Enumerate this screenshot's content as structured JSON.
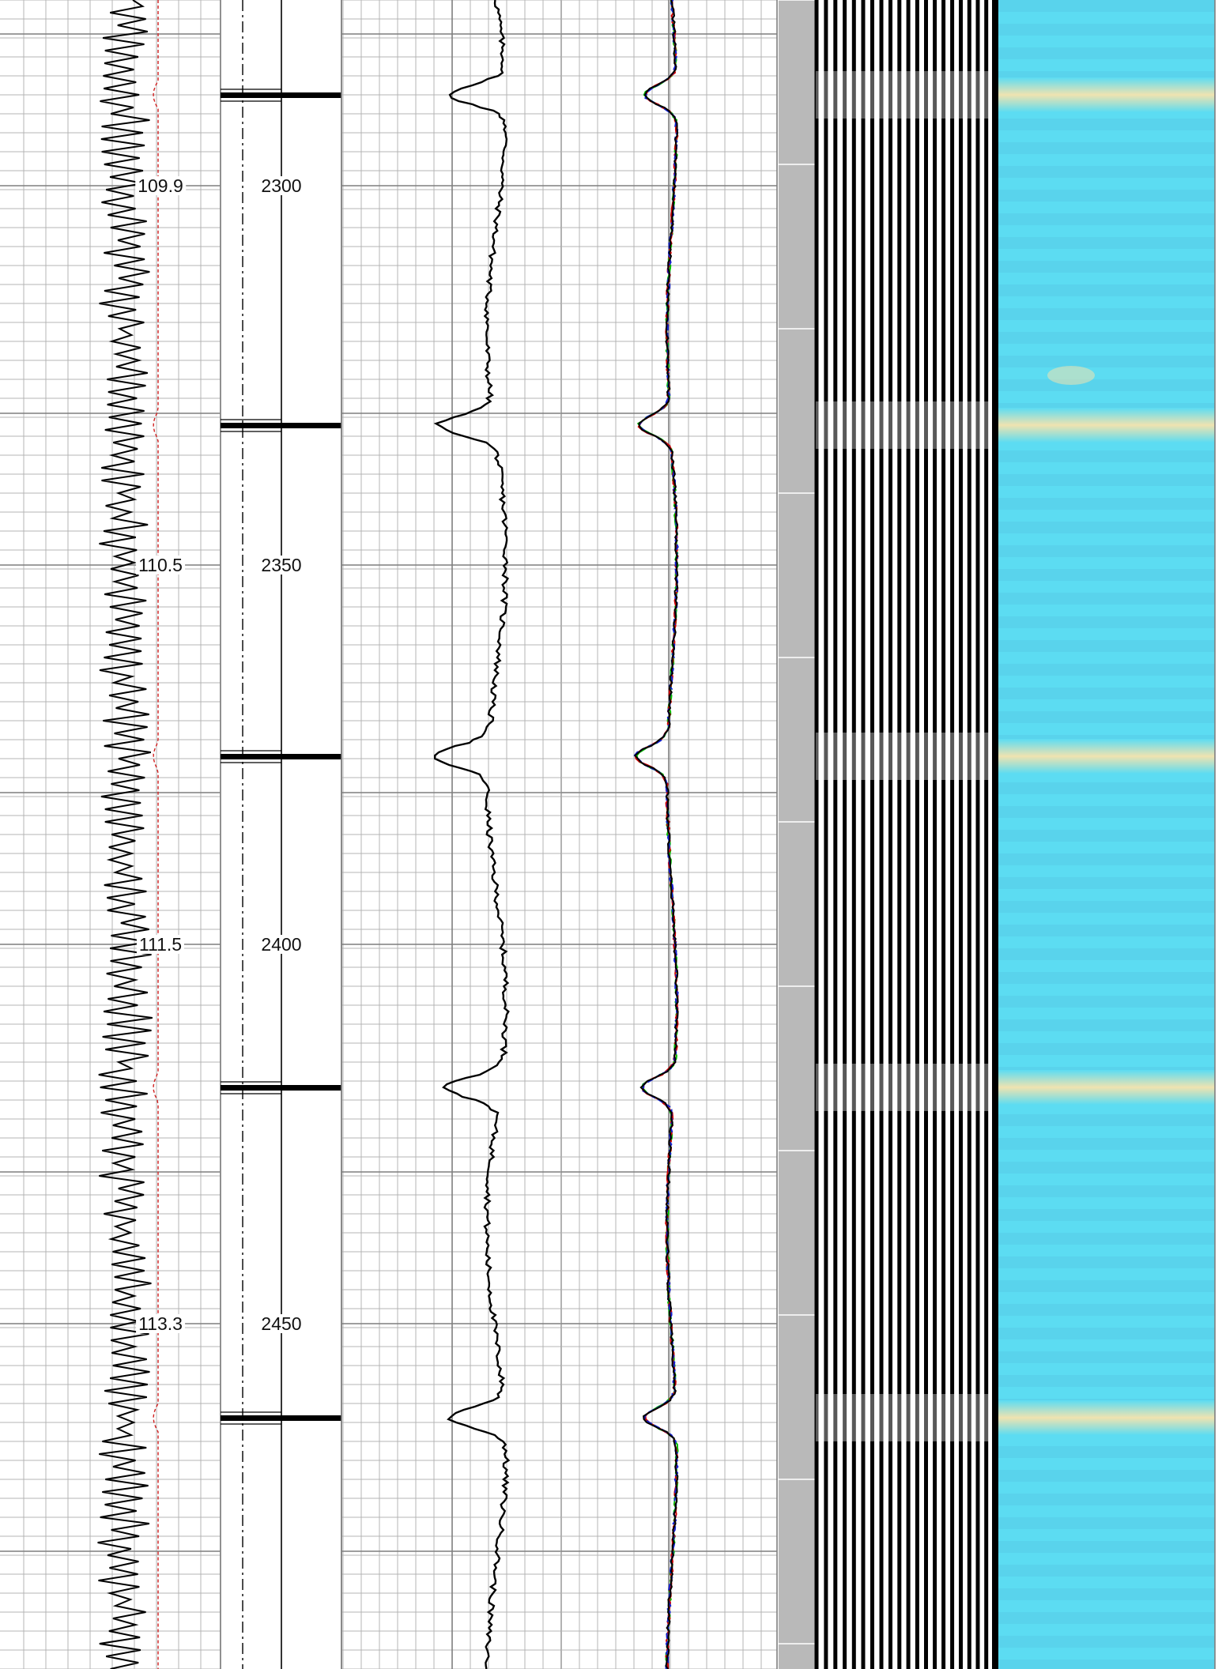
{
  "log_view": {
    "curve_labels": [
      "109.9",
      "110.5",
      "111.5",
      "113.3"
    ],
    "depth_labels": [
      "2300",
      "2350",
      "2400",
      "2450"
    ]
  },
  "colors": {
    "grid_minor": "#b4b4b4",
    "grid_major": "#7f7f7f",
    "curve_primary": "#000000",
    "curve_reference": "#d02020",
    "overlay_green": "#00c000",
    "overlay_red": "#d00000",
    "overlay_blue": "#1020d0",
    "casing_strip": "#b9b9b9",
    "image_background": "#5cdcf2",
    "image_band": "#efe3b0"
  },
  "tracks": [
    {
      "id": "wiggle-curve-track",
      "interactable": true
    },
    {
      "id": "depth-track",
      "interactable": true
    },
    {
      "id": "gamma-curve-track",
      "interactable": true
    },
    {
      "id": "multi-curve-track",
      "interactable": true
    },
    {
      "id": "casing-strip",
      "interactable": false
    },
    {
      "id": "waveform-variable-density-track",
      "interactable": true
    },
    {
      "id": "borehole-image-track",
      "interactable": true
    }
  ]
}
